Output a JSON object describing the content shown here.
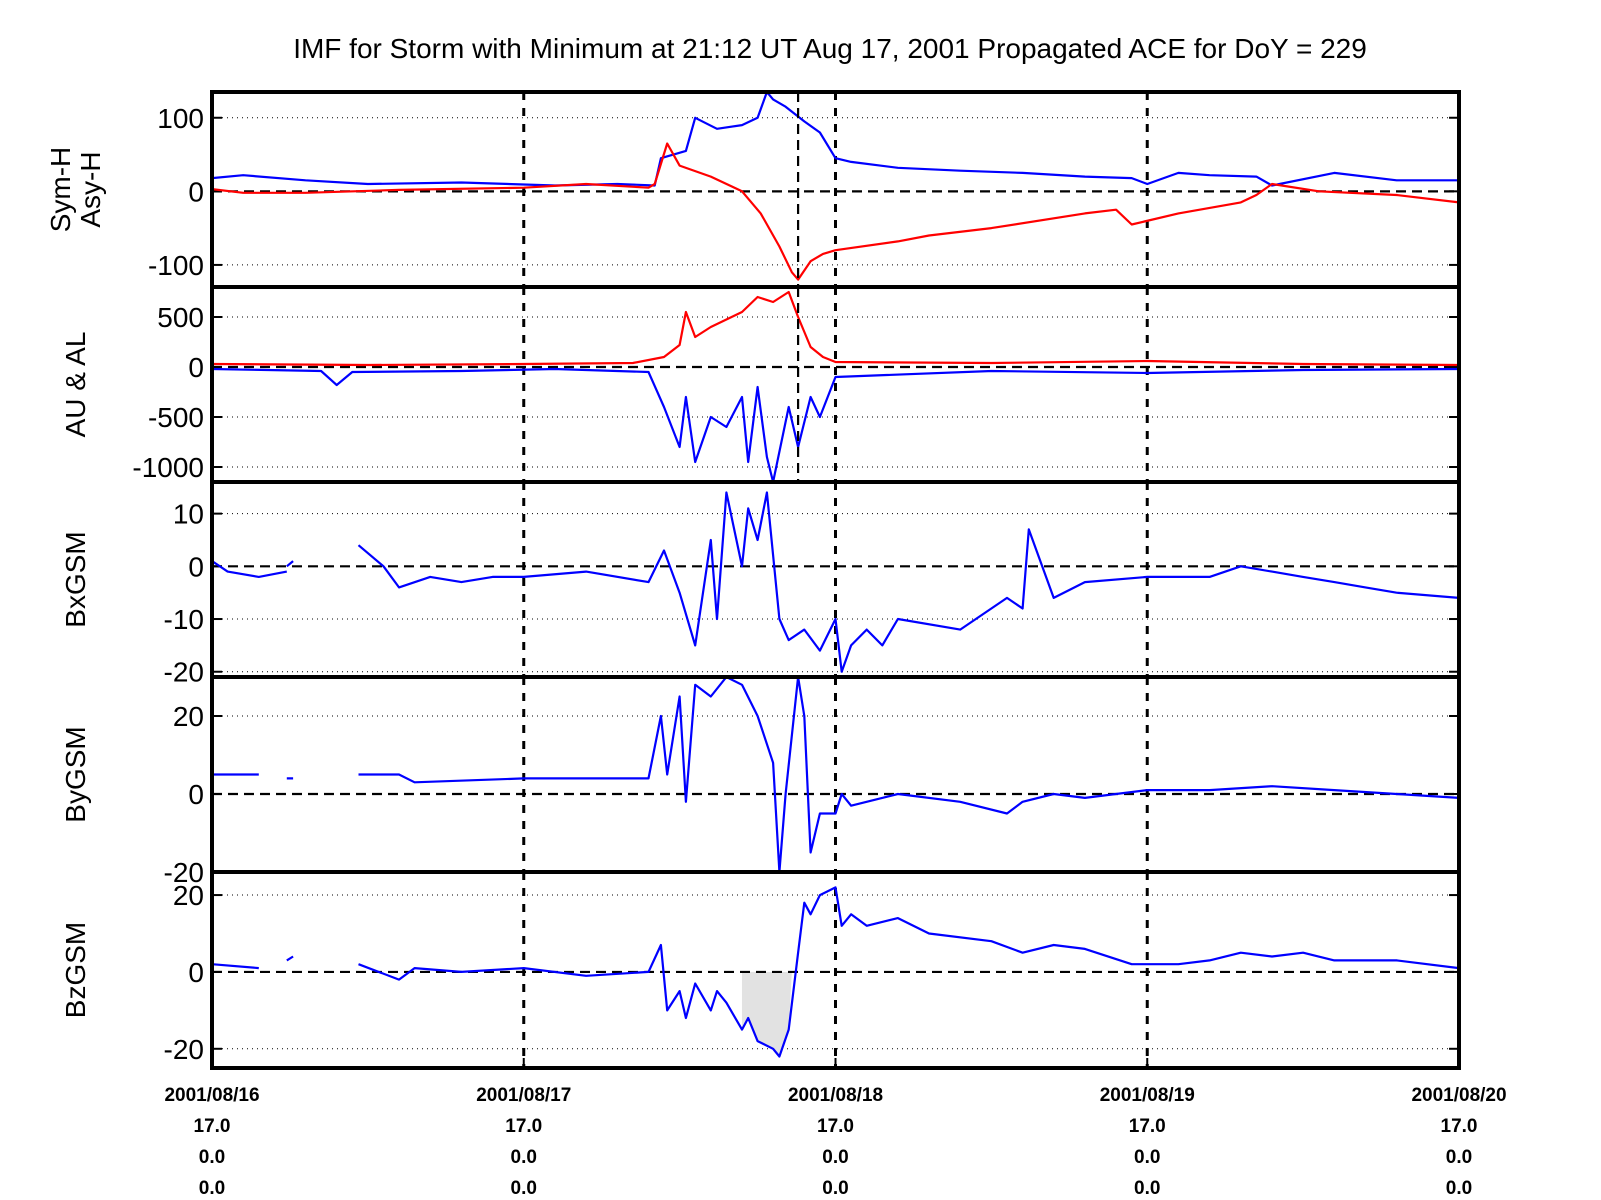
{
  "title": "IMF for Storm with Minimum at 21:12 UT Aug 17, 2001  Propagated ACE for DoY = 229",
  "colors": {
    "blue": "#0000ff",
    "red": "#ff0000",
    "axis": "#000000",
    "shade": "#e2e2e2"
  },
  "chart_data": [
    {
      "type": "line",
      "ylabel_lines": [
        "Sym-H",
        "Asy-H"
      ],
      "ylim": [
        -130,
        135
      ],
      "yticks": [
        100,
        0,
        -100
      ],
      "ytick_labels": [
        "100",
        "0",
        "-100"
      ],
      "xlim": [
        0,
        4
      ],
      "storm_marker_day": 1.88,
      "series": [
        {
          "name": "Asy-H",
          "color": "blue",
          "x": [
            0,
            0.1,
            0.3,
            0.5,
            0.8,
            1.1,
            1.3,
            1.42,
            1.44,
            1.52,
            1.55,
            1.62,
            1.7,
            1.75,
            1.78,
            1.8,
            1.84,
            1.9,
            1.95,
            2.0,
            2.05,
            2.2,
            2.4,
            2.6,
            2.8,
            2.95,
            3.0,
            3.1,
            3.2,
            3.35,
            3.4,
            3.6,
            3.8,
            4.0
          ],
          "y": [
            18,
            22,
            15,
            10,
            12,
            8,
            10,
            8,
            45,
            55,
            100,
            85,
            90,
            100,
            135,
            125,
            115,
            95,
            80,
            45,
            40,
            32,
            28,
            25,
            20,
            18,
            10,
            25,
            22,
            20,
            8,
            25,
            15,
            15
          ]
        },
        {
          "name": "Sym-H",
          "color": "red",
          "x": [
            0,
            0.1,
            0.3,
            0.6,
            1.0,
            1.2,
            1.4,
            1.42,
            1.46,
            1.5,
            1.6,
            1.7,
            1.76,
            1.82,
            1.86,
            1.88,
            1.92,
            1.96,
            2.0,
            2.2,
            2.3,
            2.5,
            2.8,
            2.9,
            2.95,
            3.1,
            3.3,
            3.35,
            3.4,
            3.55,
            3.8,
            4.0
          ],
          "y": [
            3,
            -2,
            -2,
            2,
            5,
            10,
            5,
            10,
            65,
            35,
            20,
            0,
            -30,
            -75,
            -110,
            -120,
            -95,
            -85,
            -80,
            -68,
            -60,
            -50,
            -30,
            -25,
            -45,
            -30,
            -15,
            -5,
            10,
            0,
            -5,
            -15
          ]
        }
      ]
    },
    {
      "type": "line",
      "ylabel_lines": [
        "AU & AL"
      ],
      "ylim": [
        -1150,
        800
      ],
      "yticks": [
        500,
        0,
        -500,
        -1000
      ],
      "ytick_labels": [
        "500",
        "0",
        "-500",
        "-1000"
      ],
      "xlim": [
        0,
        4
      ],
      "storm_marker_day": 1.88,
      "series": [
        {
          "name": "AU",
          "color": "red",
          "x": [
            0,
            0.5,
            1.0,
            1.35,
            1.45,
            1.5,
            1.52,
            1.55,
            1.6,
            1.7,
            1.75,
            1.8,
            1.85,
            1.88,
            1.92,
            1.96,
            2.0,
            2.5,
            3.0,
            3.5,
            4.0
          ],
          "y": [
            30,
            20,
            30,
            40,
            100,
            220,
            550,
            300,
            400,
            550,
            700,
            650,
            750,
            500,
            200,
            100,
            50,
            40,
            60,
            30,
            20
          ]
        },
        {
          "name": "AL",
          "color": "blue",
          "x": [
            0,
            0.35,
            0.4,
            0.45,
            0.8,
            1.1,
            1.4,
            1.45,
            1.5,
            1.52,
            1.55,
            1.6,
            1.65,
            1.7,
            1.72,
            1.75,
            1.78,
            1.8,
            1.85,
            1.88,
            1.92,
            1.95,
            2.0,
            2.5,
            3.0,
            3.5,
            4.0
          ],
          "y": [
            -20,
            -40,
            -180,
            -50,
            -40,
            -20,
            -50,
            -400,
            -800,
            -300,
            -950,
            -500,
            -600,
            -300,
            -950,
            -200,
            -900,
            -1150,
            -400,
            -800,
            -300,
            -500,
            -100,
            -40,
            -60,
            -30,
            -20
          ]
        }
      ]
    },
    {
      "type": "line",
      "ylabel_lines": [
        "BxGSM"
      ],
      "ylim": [
        -21,
        16
      ],
      "yticks": [
        10,
        0,
        -10,
        -20
      ],
      "ytick_labels": [
        "10",
        "0",
        "-10",
        "-20"
      ],
      "xlim": [
        0,
        4
      ],
      "storm_marker_day": 1.88,
      "series": [
        {
          "name": "BxGSM",
          "color": "blue",
          "x": [
            0,
            0.05,
            0.15,
            0.24,
            null,
            0.24,
            0.26,
            null,
            0.47,
            0.55,
            0.6,
            0.7,
            0.8,
            0.9,
            1.0,
            1.2,
            1.4,
            1.45,
            1.5,
            1.55,
            1.6,
            1.62,
            1.65,
            1.7,
            1.72,
            1.75,
            1.78,
            1.82,
            1.85,
            1.9,
            1.95,
            2.0,
            2.02,
            2.05,
            2.1,
            2.15,
            2.2,
            2.4,
            2.55,
            2.6,
            2.62,
            2.7,
            2.8,
            3.0,
            3.2,
            3.3,
            3.4,
            3.5,
            3.6,
            3.7,
            3.8,
            4.0
          ],
          "y": [
            1,
            -1,
            -2,
            -1,
            null,
            0,
            1,
            null,
            4,
            0,
            -4,
            -2,
            -3,
            -2,
            -2,
            -1,
            -3,
            3,
            -5,
            -15,
            5,
            -10,
            14,
            0,
            11,
            5,
            14,
            -10,
            -14,
            -12,
            -16,
            -10,
            -20,
            -15,
            -12,
            -15,
            -10,
            -12,
            -6,
            -8,
            7,
            -6,
            -3,
            -2,
            -2,
            0,
            -1,
            -2,
            -3,
            -4,
            -5,
            -6
          ]
        }
      ]
    },
    {
      "type": "line",
      "ylabel_lines": [
        "ByGSM"
      ],
      "ylim": [
        -20,
        30
      ],
      "yticks": [
        20,
        0,
        -20
      ],
      "ytick_labels": [
        "20",
        "0",
        "-20"
      ],
      "xlim": [
        0,
        4
      ],
      "storm_marker_day": 1.88,
      "series": [
        {
          "name": "ByGSM",
          "color": "blue",
          "x": [
            0,
            0.15,
            null,
            0.24,
            0.26,
            null,
            0.47,
            0.6,
            0.65,
            1.0,
            1.2,
            1.4,
            1.44,
            1.46,
            1.5,
            1.52,
            1.55,
            1.6,
            1.65,
            1.7,
            1.75,
            1.8,
            1.82,
            1.84,
            1.88,
            1.9,
            1.92,
            1.95,
            2.0,
            2.02,
            2.05,
            2.2,
            2.4,
            2.55,
            2.6,
            2.7,
            2.8,
            3.0,
            3.2,
            3.4,
            3.6,
            3.8,
            4.0
          ],
          "y": [
            5,
            5,
            null,
            4,
            4,
            null,
            5,
            5,
            3,
            4,
            4,
            4,
            20,
            5,
            25,
            -2,
            28,
            25,
            30,
            28,
            20,
            8,
            -20,
            0,
            30,
            20,
            -15,
            -5,
            -5,
            0,
            -3,
            0,
            -2,
            -5,
            -2,
            0,
            -1,
            1,
            1,
            2,
            1,
            0,
            -1
          ]
        }
      ]
    },
    {
      "type": "line",
      "ylabel_lines": [
        "BzGSM"
      ],
      "ylim": [
        -25,
        26
      ],
      "yticks": [
        20,
        0,
        -20
      ],
      "ytick_labels": [
        "20",
        "0",
        "-20"
      ],
      "xlim": [
        0,
        4
      ],
      "storm_marker_day": 1.88,
      "shade_negative": true,
      "series": [
        {
          "name": "BzGSM",
          "color": "blue",
          "x": [
            0,
            0.15,
            null,
            0.24,
            0.26,
            null,
            0.47,
            0.6,
            0.65,
            0.8,
            1.0,
            1.2,
            1.4,
            1.44,
            1.46,
            1.5,
            1.52,
            1.55,
            1.6,
            1.62,
            1.65,
            1.7,
            1.72,
            1.75,
            1.8,
            1.82,
            1.85,
            1.88,
            1.9,
            1.92,
            1.95,
            2.0,
            2.02,
            2.05,
            2.1,
            2.2,
            2.3,
            2.5,
            2.6,
            2.7,
            2.8,
            2.95,
            3.1,
            3.2,
            3.3,
            3.4,
            3.5,
            3.6,
            3.8,
            4.0
          ],
          "y": [
            2,
            1,
            null,
            3,
            4,
            null,
            2,
            -2,
            1,
            0,
            1,
            -1,
            0,
            7,
            -10,
            -5,
            -12,
            -3,
            -10,
            -5,
            -8,
            -15,
            -12,
            -18,
            -20,
            -22,
            -15,
            5,
            18,
            15,
            20,
            22,
            12,
            15,
            12,
            14,
            10,
            8,
            5,
            7,
            6,
            2,
            2,
            3,
            5,
            4,
            5,
            3,
            3,
            1
          ]
        }
      ]
    }
  ],
  "x_axis": {
    "ticks": [
      {
        "day": 0,
        "lines": [
          "2001/08/16",
          "17.0",
          "0.0",
          "0.0"
        ]
      },
      {
        "day": 1,
        "lines": [
          "2001/08/17",
          "17.0",
          "0.0",
          "0.0"
        ]
      },
      {
        "day": 2,
        "lines": [
          "2001/08/18",
          "17.0",
          "0.0",
          "0.0"
        ]
      },
      {
        "day": 3,
        "lines": [
          "2001/08/19",
          "17.0",
          "0.0",
          "0.0"
        ]
      },
      {
        "day": 4,
        "lines": [
          "2001/08/20",
          "17.0",
          "0.0",
          "0.0"
        ]
      }
    ]
  }
}
